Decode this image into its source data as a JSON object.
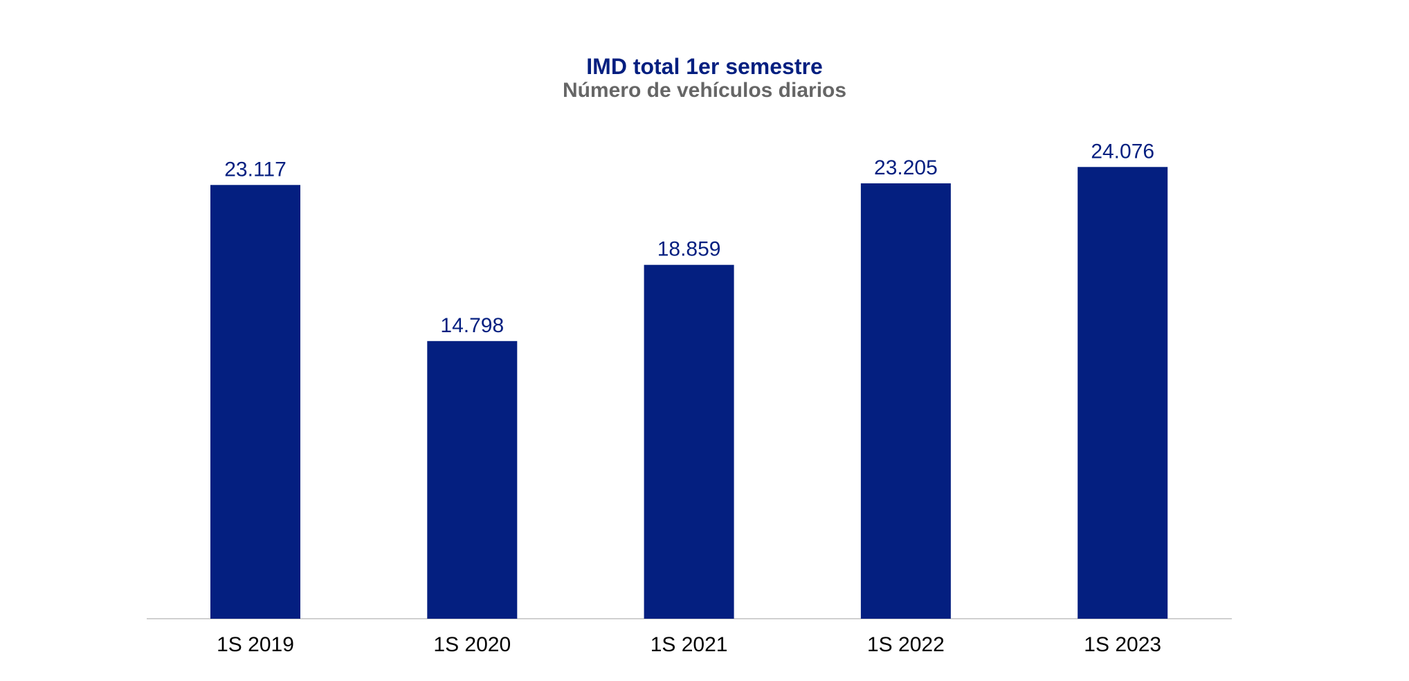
{
  "chart_data": {
    "type": "bar",
    "title": "IMD total 1er semestre",
    "subtitle": "Número de vehículos diarios",
    "categories": [
      "1S 2019",
      "1S 2020",
      "1S 2021",
      "1S 2022",
      "1S 2023"
    ],
    "values": [
      23117,
      14798,
      18859,
      23205,
      24076
    ],
    "value_labels": [
      "23.117",
      "14.798",
      "18.859",
      "23.205",
      "24.076"
    ],
    "ylim": [
      0,
      27000
    ],
    "grid": false,
    "legend": "none",
    "colors": {
      "bar": "#041f80",
      "value_label": "#041f80",
      "title": "#041f80",
      "subtitle": "#666666",
      "axis": "#d0d0d0",
      "tick_label": "#000000"
    }
  }
}
